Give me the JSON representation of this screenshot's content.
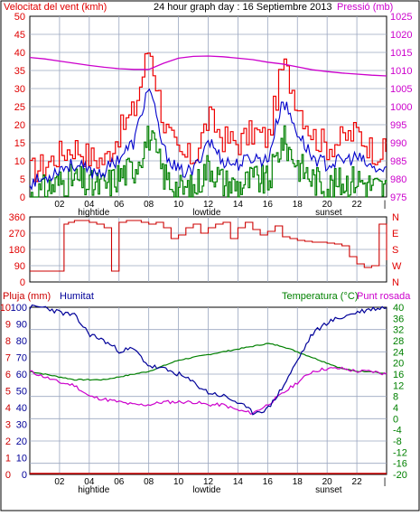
{
  "header": {
    "wind_label": "Velocitat del vent (kmh)",
    "title": "24 hour graph day : 16 Septiembre 2013",
    "pressure_label": "Pressió (mb)"
  },
  "bottom_header": {
    "rain_label": "Pluja (mm)",
    "humidity_label": "Humitat",
    "temp_label": "Temperatura (°C)",
    "dew_label": "Punt rosada"
  },
  "colors": {
    "wind_axis": "#e00000",
    "pressure_axis": "#cc00cc",
    "gust": "#ee0000",
    "avg_wind": "#0000cc",
    "wind_min": "#008000",
    "pressure": "#cc00cc",
    "direction": "#cc0000",
    "humidity": "#000099",
    "temperature": "#008000",
    "dew_point": "#cc00cc",
    "rain": "#cc0000",
    "grid": "#9aa6bf"
  },
  "x_axis": {
    "ticks": [
      "02",
      "04",
      "06",
      "08",
      "10",
      "12",
      "14",
      "16",
      "18",
      "20",
      "22",
      "|"
    ],
    "markers": [
      {
        "label": "hightide",
        "hour": 4.3
      },
      {
        "label": "lowtide",
        "hour": 11.9
      },
      {
        "label": "sunset",
        "hour": 20.1
      }
    ]
  },
  "chart_data": [
    {
      "type": "line",
      "name": "wind-pressure",
      "x": [
        0,
        1,
        2,
        3,
        4,
        5,
        6,
        7,
        8,
        9,
        10,
        11,
        12,
        13,
        14,
        15,
        16,
        17,
        18,
        19,
        20,
        21,
        22,
        23,
        24
      ],
      "xlim": [
        0,
        24
      ],
      "ylim": [
        0,
        50
      ],
      "y_ticks": [
        0,
        5,
        10,
        15,
        20,
        25,
        30,
        35,
        40,
        45,
        50
      ],
      "y2lim": [
        975,
        1025
      ],
      "y2_ticks": [
        975,
        980,
        985,
        990,
        995,
        1000,
        1005,
        1010,
        1015,
        1020,
        1025
      ],
      "series": [
        {
          "key": "gust",
          "values": [
            7,
            9,
            12,
            14,
            11,
            10,
            18,
            24,
            42,
            20,
            11,
            11,
            22,
            16,
            15,
            18,
            16,
            37,
            26,
            17,
            14,
            16,
            18,
            13,
            12
          ]
        },
        {
          "key": "average",
          "values": [
            4,
            5,
            8,
            9,
            7,
            7,
            11,
            15,
            31,
            13,
            7,
            7,
            16,
            10,
            9,
            11,
            10,
            27,
            18,
            11,
            9,
            10,
            11,
            8,
            7
          ]
        },
        {
          "key": "minimum",
          "values": [
            0,
            2,
            4,
            5,
            3,
            3,
            6,
            8,
            17,
            6,
            2,
            2,
            9,
            4,
            3,
            5,
            4,
            16,
            9,
            5,
            3,
            4,
            5,
            3,
            2
          ]
        },
        {
          "key": "pressure",
          "values": [
            1013.6,
            1013.2,
            1012.6,
            1012.0,
            1011.4,
            1010.9,
            1010.5,
            1010.3,
            1010.3,
            1012.0,
            1013.4,
            1013.9,
            1014.0,
            1013.8,
            1013.4,
            1013.0,
            1012.3,
            1011.8,
            1011.0,
            1010.2,
            1009.7,
            1009.3,
            1009.0,
            1008.7,
            1008.5
          ]
        }
      ]
    },
    {
      "type": "line",
      "name": "wind-direction",
      "x": [
        0,
        0.5,
        1,
        1.5,
        2,
        2.3,
        2.6,
        3,
        3.4,
        4,
        4.5,
        5,
        5.5,
        6,
        6.5,
        7,
        7.5,
        8,
        8.5,
        9,
        9.5,
        10,
        10.5,
        11,
        11.5,
        12,
        12.5,
        13,
        13.5,
        14,
        14.5,
        15,
        15.5,
        16,
        16.5,
        17,
        17.5,
        18,
        18.5,
        19,
        19.5,
        20,
        20.5,
        21,
        21.5,
        22,
        22.5,
        23,
        23.5,
        24
      ],
      "xlim": [
        0,
        24
      ],
      "ylim": [
        0,
        360
      ],
      "y_ticks": [
        0,
        90,
        180,
        270,
        360
      ],
      "y2_labels": [
        "N",
        "W",
        "S",
        "E",
        "N"
      ],
      "series": [
        {
          "key": "direction",
          "values": [
            60,
            60,
            60,
            60,
            60,
            320,
            330,
            340,
            340,
            330,
            320,
            300,
            60,
            330,
            340,
            340,
            330,
            320,
            330,
            300,
            240,
            260,
            300,
            320,
            270,
            300,
            320,
            330,
            240,
            300,
            330,
            290,
            260,
            280,
            310,
            250,
            240,
            230,
            225,
            220,
            220,
            215,
            210,
            200,
            140,
            100,
            80,
            90,
            320,
            120
          ]
        }
      ]
    },
    {
      "type": "line",
      "name": "humidity-temperature",
      "x": [
        0,
        1,
        2,
        3,
        4,
        5,
        6,
        7,
        8,
        9,
        10,
        11,
        12,
        13,
        14,
        15,
        16,
        17,
        18,
        19,
        20,
        21,
        22,
        23,
        24
      ],
      "xlim": [
        0,
        24
      ],
      "ylim": [
        0,
        100
      ],
      "y_ticks": [
        0,
        10,
        20,
        30,
        40,
        50,
        60,
        70,
        80,
        90,
        100
      ],
      "y2lim": [
        -20,
        40
      ],
      "y2_ticks": [
        -20,
        -16,
        -12,
        -8,
        -4,
        0,
        4,
        8,
        12,
        16,
        20,
        24,
        28,
        32,
        36,
        40
      ],
      "series": [
        {
          "key": "humidity",
          "values": [
            100,
            100,
            97,
            95,
            84,
            80,
            74,
            75,
            65,
            63,
            60,
            55,
            49,
            47,
            43,
            37,
            39,
            52,
            68,
            84,
            91,
            94,
            97,
            99,
            100
          ]
        },
        {
          "key": "temperature",
          "values": [
            17,
            16,
            15,
            14,
            14,
            14,
            15,
            16,
            17,
            19,
            21,
            22,
            23,
            24,
            25,
            26,
            27,
            26,
            24,
            22,
            20,
            18,
            17,
            17,
            16
          ]
        },
        {
          "key": "dew_point",
          "values": [
            17,
            15,
            13,
            12,
            8,
            7,
            6,
            5,
            5,
            6,
            6,
            6,
            5,
            5,
            3,
            2,
            5,
            9,
            13,
            17,
            18,
            18,
            17,
            17,
            16
          ]
        },
        {
          "key": "rain",
          "values": [
            0,
            0,
            0,
            0,
            0,
            0,
            0,
            0,
            0,
            0,
            0,
            0,
            0,
            0,
            0,
            0,
            0,
            0,
            0,
            0,
            0,
            0,
            0,
            0,
            0
          ]
        }
      ]
    }
  ]
}
